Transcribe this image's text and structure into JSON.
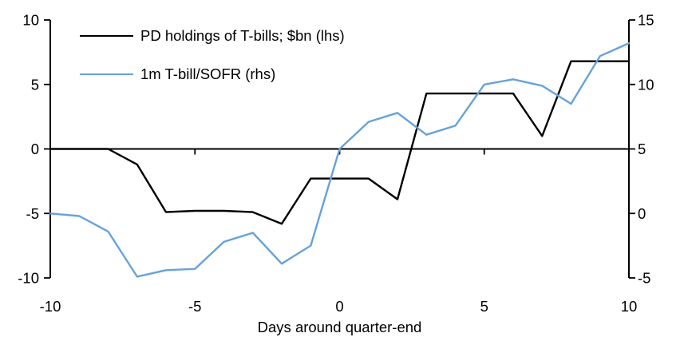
{
  "chart_data": {
    "type": "line",
    "title": "",
    "xlabel": "Days around quarter-end",
    "grid": false,
    "legend_position": "top-left-inside",
    "x": [
      -10,
      -9,
      -8,
      -7,
      -6,
      -5,
      -4,
      -3,
      -2,
      -1,
      0,
      1,
      2,
      3,
      4,
      5,
      6,
      7,
      8,
      9,
      10
    ],
    "series": [
      {
        "name": "PD holdings of T-bills; $bn (lhs)",
        "axis": "left",
        "color": "#000000",
        "values": [
          0,
          0,
          0,
          -1.2,
          -4.9,
          -4.8,
          -4.8,
          -4.9,
          -5.8,
          -2.3,
          -2.3,
          -2.3,
          -3.9,
          4.3,
          4.3,
          4.3,
          4.3,
          1.0,
          6.8,
          6.8,
          6.8
        ]
      },
      {
        "name": "1m T-bill/SOFR (rhs)",
        "axis": "right",
        "color": "#67A2DA",
        "values": [
          0,
          -0.2,
          -1.4,
          -4.9,
          -4.4,
          -4.3,
          -2.2,
          -1.5,
          -3.9,
          -2.5,
          5.0,
          7.1,
          7.8,
          6.1,
          6.8,
          10.0,
          10.4,
          9.9,
          8.5,
          12.2,
          13.2
        ]
      }
    ],
    "left_axis": {
      "min": -10,
      "max": 10,
      "ticks": [
        10,
        5,
        0,
        -5,
        -10
      ]
    },
    "right_axis": {
      "min": -5,
      "max": 15,
      "ticks": [
        15,
        10,
        5,
        0,
        -5
      ]
    },
    "x_axis": {
      "min": -10,
      "max": 10,
      "ticks": [
        -10,
        -5,
        0,
        5,
        10
      ]
    },
    "axis_color": "#000000",
    "background": "#ffffff"
  }
}
